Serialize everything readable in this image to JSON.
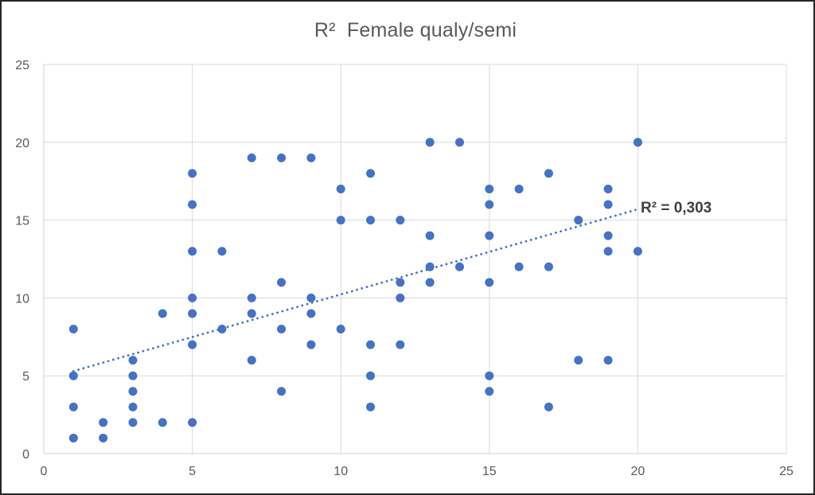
{
  "chart_data": {
    "type": "scatter",
    "title": "R²  Female qualy/semi",
    "xlabel": "",
    "ylabel": "",
    "xlim": [
      0,
      25
    ],
    "ylim": [
      0,
      25
    ],
    "x_ticks": [
      0,
      5,
      10,
      15,
      20,
      25
    ],
    "y_ticks": [
      0,
      5,
      10,
      15,
      20,
      25
    ],
    "grid": true,
    "legend": false,
    "points": [
      [
        1,
        8
      ],
      [
        1,
        5
      ],
      [
        1,
        3
      ],
      [
        1,
        1
      ],
      [
        2,
        2
      ],
      [
        2,
        1
      ],
      [
        3,
        6
      ],
      [
        3,
        5
      ],
      [
        3,
        4
      ],
      [
        3,
        3
      ],
      [
        3,
        2
      ],
      [
        4,
        9
      ],
      [
        4,
        2
      ],
      [
        5,
        18
      ],
      [
        5,
        16
      ],
      [
        5,
        13
      ],
      [
        5,
        10
      ],
      [
        5,
        9
      ],
      [
        5,
        7
      ],
      [
        5,
        2
      ],
      [
        6,
        13
      ],
      [
        6,
        8
      ],
      [
        7,
        19
      ],
      [
        7,
        10
      ],
      [
        7,
        9
      ],
      [
        7,
        6
      ],
      [
        8,
        19
      ],
      [
        8,
        11
      ],
      [
        8,
        8
      ],
      [
        8,
        4
      ],
      [
        9,
        19
      ],
      [
        9,
        10
      ],
      [
        9,
        9
      ],
      [
        9,
        7
      ],
      [
        10,
        17
      ],
      [
        10,
        15
      ],
      [
        10,
        8
      ],
      [
        11,
        18
      ],
      [
        11,
        15
      ],
      [
        11,
        7
      ],
      [
        11,
        5
      ],
      [
        11,
        3
      ],
      [
        12,
        15
      ],
      [
        12,
        11
      ],
      [
        12,
        10
      ],
      [
        12,
        7
      ],
      [
        13,
        20
      ],
      [
        13,
        14
      ],
      [
        13,
        12
      ],
      [
        13,
        11
      ],
      [
        14,
        20
      ],
      [
        14,
        12
      ],
      [
        15,
        17
      ],
      [
        15,
        16
      ],
      [
        15,
        14
      ],
      [
        15,
        11
      ],
      [
        15,
        5
      ],
      [
        15,
        4
      ],
      [
        16,
        17
      ],
      [
        16,
        12
      ],
      [
        17,
        18
      ],
      [
        17,
        12
      ],
      [
        17,
        3
      ],
      [
        18,
        15
      ],
      [
        18,
        6
      ],
      [
        19,
        17
      ],
      [
        19,
        16
      ],
      [
        19,
        14
      ],
      [
        19,
        13
      ],
      [
        19,
        6
      ],
      [
        20,
        20
      ],
      [
        20,
        13
      ]
    ],
    "trendline": {
      "style": "dotted-linear",
      "x1": 1,
      "y1": 5.3,
      "x2": 20,
      "y2": 15.7,
      "r_squared_label": "R² = 0,303"
    },
    "colors": {
      "marker": "#4472C4",
      "trendline": "#4472C4",
      "gridline": "#D9D9D9",
      "plot_border": "#D2D2D2",
      "axis_text": "#595959",
      "title_text": "#595959",
      "r2_text": "#404040"
    }
  }
}
